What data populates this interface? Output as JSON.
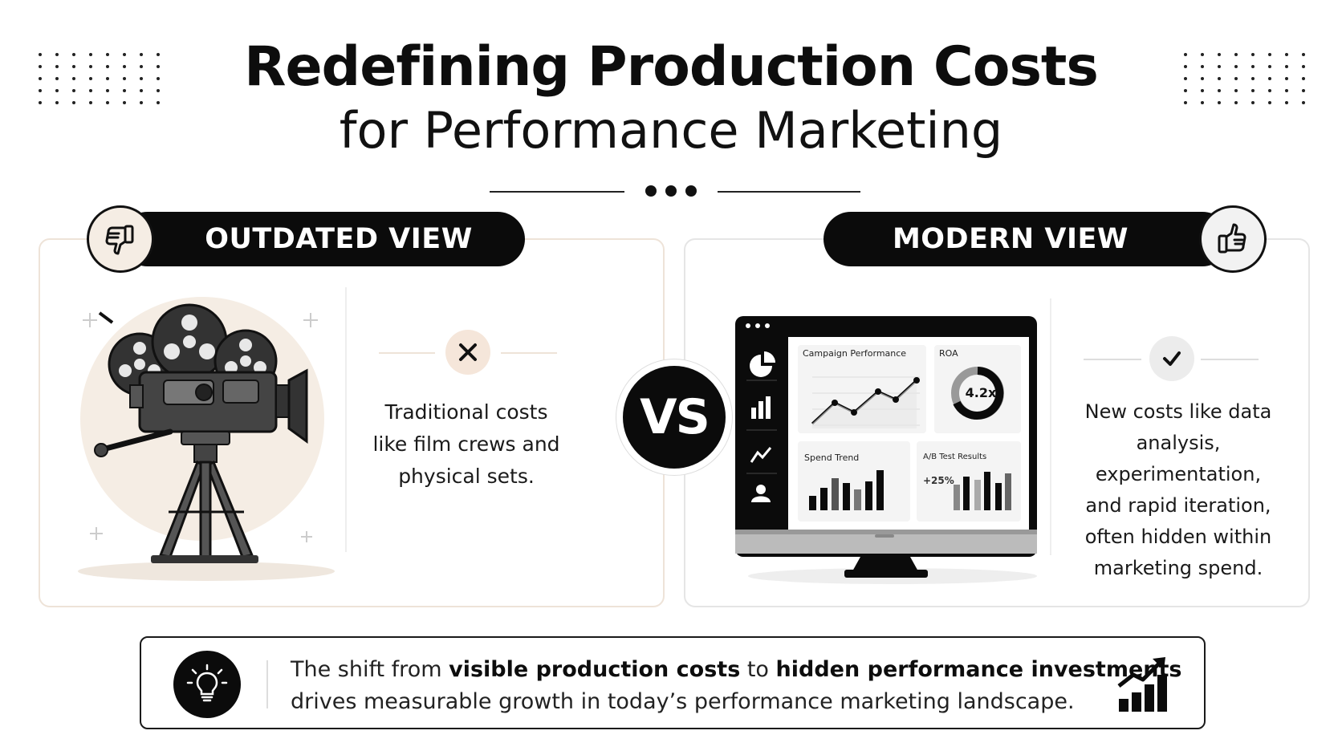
{
  "header": {
    "title": "Redefining Production Costs",
    "subtitle": "for Performance Marketing"
  },
  "left": {
    "label": "OUTDATED VIEW",
    "badge_icon": "thumbs-down-icon",
    "illustration": "film-camera-icon",
    "mark_icon": "close-icon",
    "description": [
      "Traditional costs",
      "like film crews and",
      "physical sets."
    ]
  },
  "vs": "VS",
  "right": {
    "label": "MODERN VIEW",
    "badge_icon": "thumbs-up-icon",
    "mark_icon": "check-icon",
    "description": [
      "New costs like data",
      "analysis, experimentation,",
      "and rapid iteration,",
      "often hidden within",
      "marketing spend."
    ],
    "dashboard": {
      "campaign_title": "Campaign Performance",
      "roa_title": "ROA",
      "roa_value": "4.2x",
      "spend_title": "Spend Trend",
      "ab_title": "A/B Test Results",
      "ab_value": "+25%"
    }
  },
  "footer": {
    "p1": "The shift from ",
    "b1": "visible production costs",
    "p2": " to ",
    "b2": "hidden performance investments",
    "line2": "drives measurable growth in today’s performance marketing landscape.",
    "icon": "lightbulb-icon",
    "trend_icon": "growth-chart-icon"
  },
  "colors": {
    "ink": "#0b0b0b",
    "cream": "#f5ede4",
    "panel_border_left": "#eee3d8",
    "panel_border_right": "#e5e5e5"
  }
}
